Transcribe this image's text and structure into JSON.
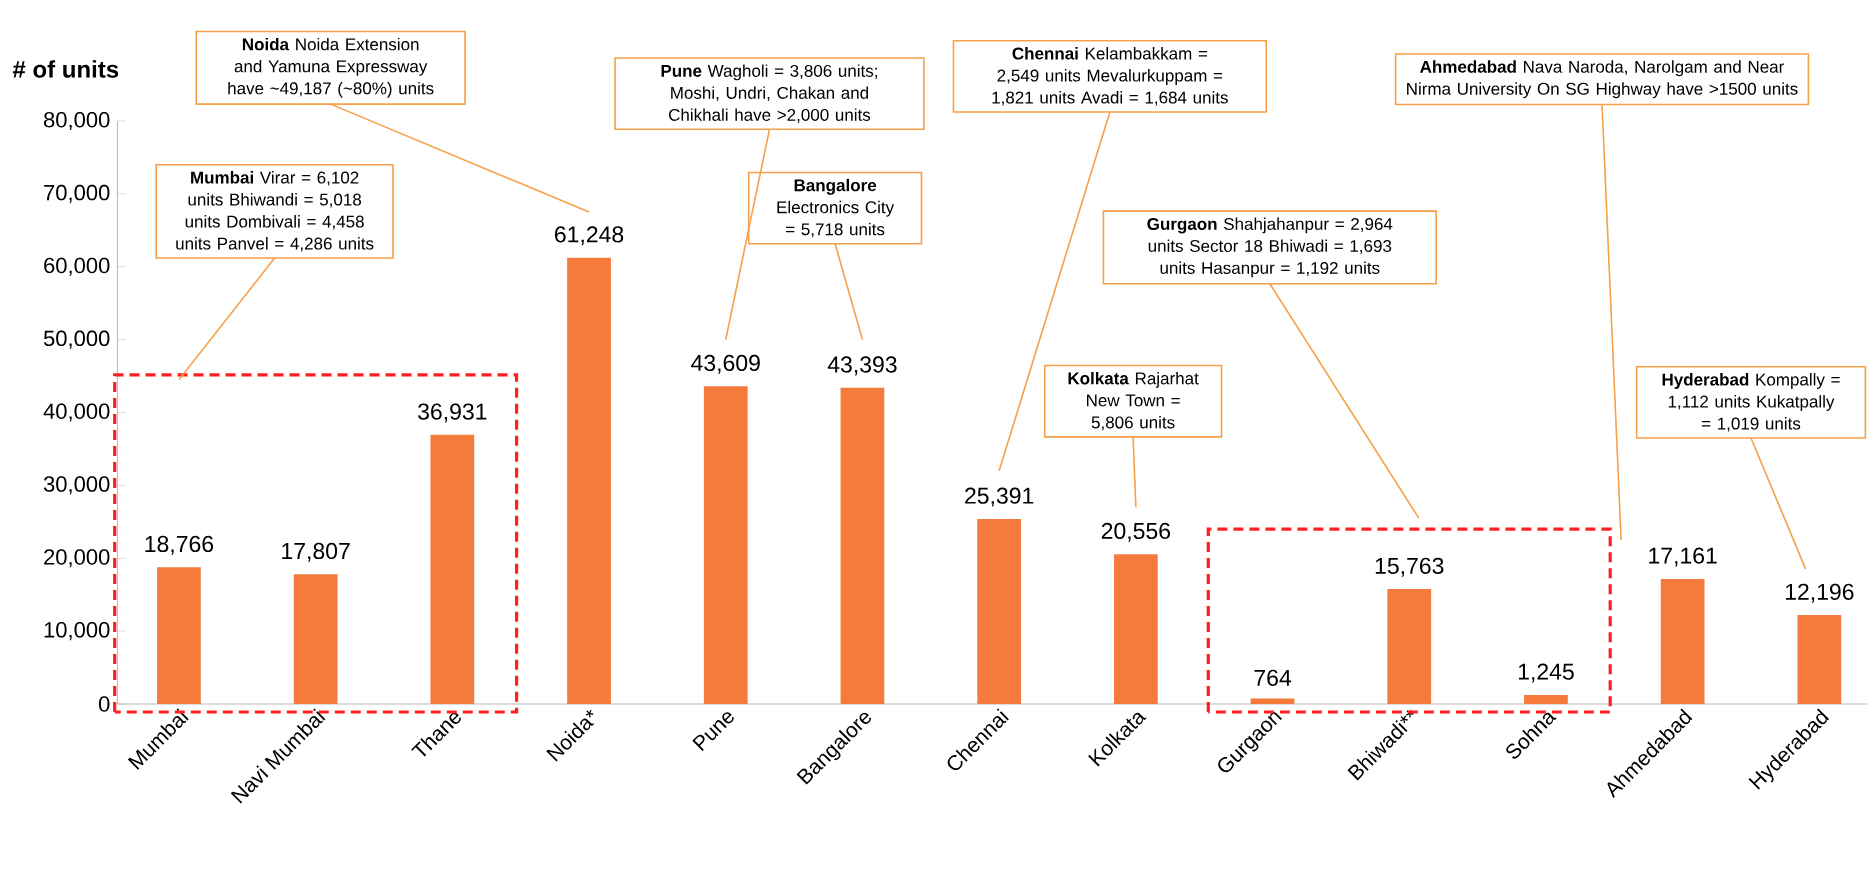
{
  "chart_data": {
    "type": "bar",
    "ylabel": "# of units",
    "categories": [
      "Mumbai",
      "Navi Mumbai",
      "Thane",
      "Noida*",
      "Pune",
      "Bangalore",
      "Chennai",
      "Kolkata",
      "Gurgaon",
      "Bhiwadi**",
      "Sohna",
      "Ahmedabad",
      "Hyderabad"
    ],
    "values": [
      18766,
      17807,
      36931,
      61248,
      43609,
      43393,
      25391,
      20556,
      764,
      15763,
      1245,
      17161,
      12196
    ],
    "value_labels": [
      "18,766",
      "17,807",
      "36,931",
      "61,248",
      "43,609",
      "43,393",
      "25,391",
      "20,556",
      "764",
      "15,763",
      "1,245",
      "17,161",
      "12,196"
    ],
    "color": "#f47b3b",
    "ylim": [
      0,
      80000
    ],
    "yticks": [
      0,
      {
        "value": 10000,
        "label": "10,000"
      },
      {
        "value": 20000,
        "label": "20,000"
      },
      {
        "value": 30000,
        "label": "30,000"
      },
      {
        "value": 40000,
        "label": "40,000"
      },
      {
        "value": 50000,
        "label": "50,000"
      },
      {
        "value": 60000,
        "label": "60,000"
      },
      {
        "value": 70000,
        "label": "70,000"
      },
      {
        "value": 80000,
        "label": "80,000"
      }
    ],
    "annotations": [
      "**Mumbai** Virar = 6,102 units Bhiwandi = 5,018 units Dombivali = 4,458 units Panvel = 4,286 units",
      "**Noida** Noida Extension and Yamuna Expressway have ~49,187 (~80%) units",
      "**Pune** Wagholi = 3,806 units; Moshi, Undri, Chakan and Chikhali have >2,000 units",
      "**Bangalore** Electronics City = 5,718 units",
      "**Chennai** Kelambakkam = 2,549 units Mevalurkuppam = 1,821 units Avadi = 1,684 units",
      "**Kolkata** Rajarhat New Town = 5,806 units",
      "**Gurgaon** Shahjahanpur = 2,964 units Sector 18 Bhiwadi = 1,693 units Hasanpur = 1,192 units",
      "**Ahmedabad** Nava Naroda, Narolgam and Near Nirma University On SG Highway have >1500 units",
      "**Hyderabad** Kompally = 1,112 units Kukatpally = 1,019 units"
    ]
  }
}
